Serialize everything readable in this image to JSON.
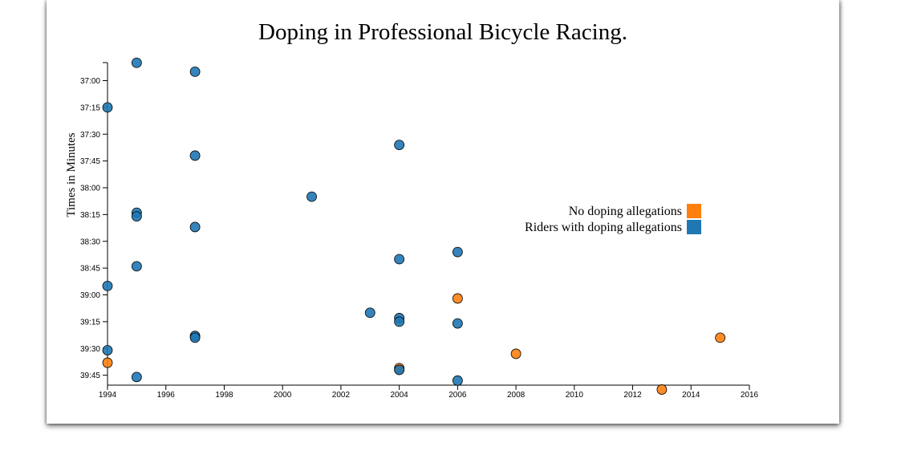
{
  "chart_data": {
    "type": "scatter",
    "title": "Doping in Professional Bicycle Racing.",
    "ylabel": "Times in Minutes",
    "xlabel": "",
    "xlim": [
      1994,
      2016
    ],
    "ylim_seconds": [
      2210,
      2390
    ],
    "x_ticks": [
      1994,
      1996,
      1998,
      2000,
      2002,
      2004,
      2006,
      2008,
      2010,
      2012,
      2014,
      2016
    ],
    "y_ticks": [
      "37:00",
      "37:15",
      "37:30",
      "37:45",
      "38:00",
      "38:15",
      "38:30",
      "38:45",
      "39:00",
      "39:15",
      "39:30",
      "39:45"
    ],
    "y_inverted": true,
    "colors": {
      "no_doping": "#ff7f0e",
      "doping": "#1f77b4"
    },
    "legend": {
      "placement": "right-middle",
      "entries": [
        {
          "label": "No doping allegations",
          "key": "no_doping"
        },
        {
          "label": "Riders with doping allegations",
          "key": "doping"
        }
      ]
    },
    "points": [
      {
        "year": 1995,
        "time": "36:50",
        "doping": true
      },
      {
        "year": 1997,
        "time": "36:55",
        "doping": true
      },
      {
        "year": 1994,
        "time": "37:15",
        "doping": true
      },
      {
        "year": 2004,
        "time": "37:36",
        "doping": true
      },
      {
        "year": 1997,
        "time": "37:42",
        "doping": true
      },
      {
        "year": 2001,
        "time": "38:05",
        "doping": true
      },
      {
        "year": 1995,
        "time": "38:14",
        "doping": true
      },
      {
        "year": 1995,
        "time": "38:16",
        "doping": true
      },
      {
        "year": 1997,
        "time": "38:22",
        "doping": true
      },
      {
        "year": 2006,
        "time": "38:36",
        "doping": true
      },
      {
        "year": 2004,
        "time": "38:40",
        "doping": true
      },
      {
        "year": 1995,
        "time": "38:44",
        "doping": true
      },
      {
        "year": 1994,
        "time": "38:55",
        "doping": true
      },
      {
        "year": 2006,
        "time": "39:02",
        "doping": false
      },
      {
        "year": 2003,
        "time": "39:10",
        "doping": true
      },
      {
        "year": 2004,
        "time": "39:13",
        "doping": true
      },
      {
        "year": 2004,
        "time": "39:15",
        "doping": true
      },
      {
        "year": 2006,
        "time": "39:16",
        "doping": true
      },
      {
        "year": 1997,
        "time": "39:23",
        "doping": true
      },
      {
        "year": 1997,
        "time": "39:24",
        "doping": true
      },
      {
        "year": 2015,
        "time": "39:24",
        "doping": false
      },
      {
        "year": 1994,
        "time": "39:31",
        "doping": true
      },
      {
        "year": 2008,
        "time": "39:33",
        "doping": false
      },
      {
        "year": 1994,
        "time": "39:38",
        "doping": false
      },
      {
        "year": 2004,
        "time": "39:41",
        "doping": false
      },
      {
        "year": 2004,
        "time": "39:42",
        "doping": true
      },
      {
        "year": 1995,
        "time": "39:46",
        "doping": true
      },
      {
        "year": 2006,
        "time": "39:48",
        "doping": true
      },
      {
        "year": 2013,
        "time": "39:53",
        "doping": false
      }
    ]
  }
}
